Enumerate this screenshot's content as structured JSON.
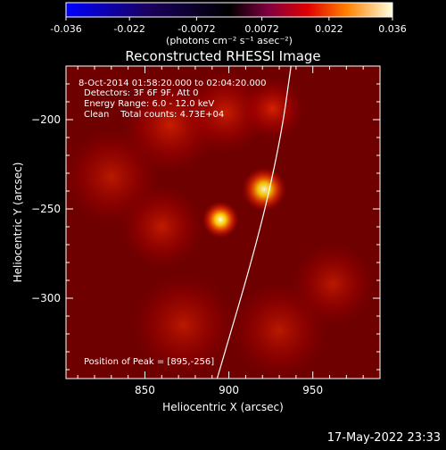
{
  "colorbar": {
    "tick_labels": [
      "-0.036",
      "-0.022",
      "-0.0072",
      "0.0072",
      "0.022",
      "0.036"
    ],
    "tick_values": [
      -0.036,
      -0.022,
      -0.0072,
      0.0072,
      0.022,
      0.036
    ],
    "range": [
      -0.036,
      0.036
    ],
    "units": "(photons cm⁻² s⁻¹ asec⁻²)"
  },
  "chart_data": {
    "type": "heatmap",
    "title": "Reconstructed RHESSI Image",
    "xlabel": "Heliocentric X (arcsec)",
    "ylabel": "Heliocentric Y (arcsec)",
    "xlim": [
      803,
      990
    ],
    "ylim": [
      -345,
      -170
    ],
    "x_ticks": [
      850,
      900,
      950
    ],
    "x_tick_labels": [
      "850",
      "900",
      "950"
    ],
    "y_ticks": [
      -200,
      -250,
      -300
    ],
    "y_tick_labels": [
      "−200",
      "−250",
      "−300"
    ],
    "annotations": [
      " 8-Oct-2014 01:58:20.000 to 02:04:20.000",
      "Detectors: 3F 6F 9F, Att 0",
      "Energy Range: 6.0 - 12.0 keV",
      "Clean    Total counts: 4.73E+04"
    ],
    "peak_label": "Position of Peak = [895,-256]",
    "peak": {
      "x": 895,
      "y": -256
    },
    "sources": [
      {
        "x": 895,
        "y": -256,
        "intensity": 0.036,
        "sigma": 5
      },
      {
        "x": 921,
        "y": -239,
        "intensity": 0.018,
        "sigma": 6
      },
      {
        "x": 926,
        "y": -194,
        "intensity": 0.014,
        "sigma": 9
      },
      {
        "x": 865,
        "y": -203,
        "intensity": 0.01,
        "sigma": 14
      },
      {
        "x": 898,
        "y": -196,
        "intensity": 0.01,
        "sigma": 12
      },
      {
        "x": 860,
        "y": -260,
        "intensity": 0.008,
        "sigma": 12
      },
      {
        "x": 873,
        "y": -315,
        "intensity": 0.006,
        "sigma": 15
      },
      {
        "x": 930,
        "y": -318,
        "intensity": 0.006,
        "sigma": 14
      },
      {
        "x": 962,
        "y": -292,
        "intensity": 0.006,
        "sigma": 12
      },
      {
        "x": 830,
        "y": -232,
        "intensity": 0.006,
        "sigma": 14
      }
    ],
    "limb_curve": [
      {
        "x": 893,
        "y": -345
      },
      {
        "x": 918,
        "y": -265
      },
      {
        "x": 931,
        "y": -210
      },
      {
        "x": 937,
        "y": -170
      }
    ]
  },
  "footer_date": "17-May-2022 23:33"
}
